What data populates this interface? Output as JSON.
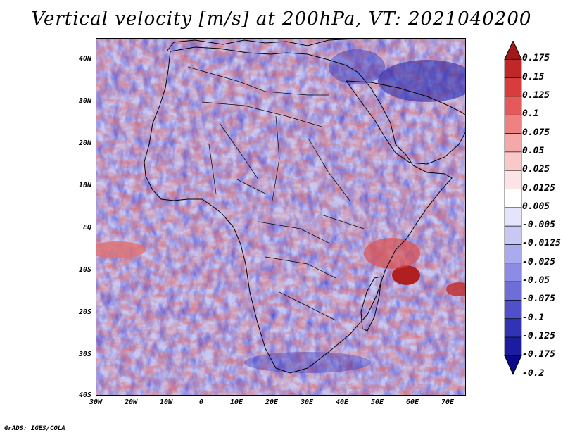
{
  "title": "Vertical velocity [m/s] at 200hPa, VT: 2021040200",
  "credit": "GrADS: IGES/COLA",
  "lat_labels": [
    "40N",
    "30N",
    "20N",
    "10N",
    "EQ",
    "10S",
    "20S",
    "30S",
    "40S"
  ],
  "lon_labels": [
    "30W",
    "20W",
    "10W",
    "0",
    "10E",
    "20E",
    "30E",
    "40E",
    "50E",
    "60E",
    "70E"
  ],
  "colorbar": {
    "labels": [
      "0.175",
      "0.15",
      "0.125",
      "0.1",
      "0.075",
      "0.05",
      "0.025",
      "0.0125",
      "0.005",
      "-0.005",
      "-0.0125",
      "-0.025",
      "-0.05",
      "-0.075",
      "-0.1",
      "-0.125",
      "-0.175",
      "-0.2"
    ],
    "colors": [
      "#a01818",
      "#c02828",
      "#d83c3c",
      "#e45a5a",
      "#ee8282",
      "#f5a8a8",
      "#f9c8c8",
      "#fde4e4",
      "#ffffff",
      "#e4e4fb",
      "#c8c8f5",
      "#aaaaee",
      "#8c8ce4",
      "#6e6ed8",
      "#5050c8",
      "#3232b4",
      "#1c1ca0",
      "#0a0a88"
    ]
  },
  "map": {
    "positive_color": "#e06c6c",
    "negative_color": "#5858d8",
    "land_border_color": "#000000"
  }
}
